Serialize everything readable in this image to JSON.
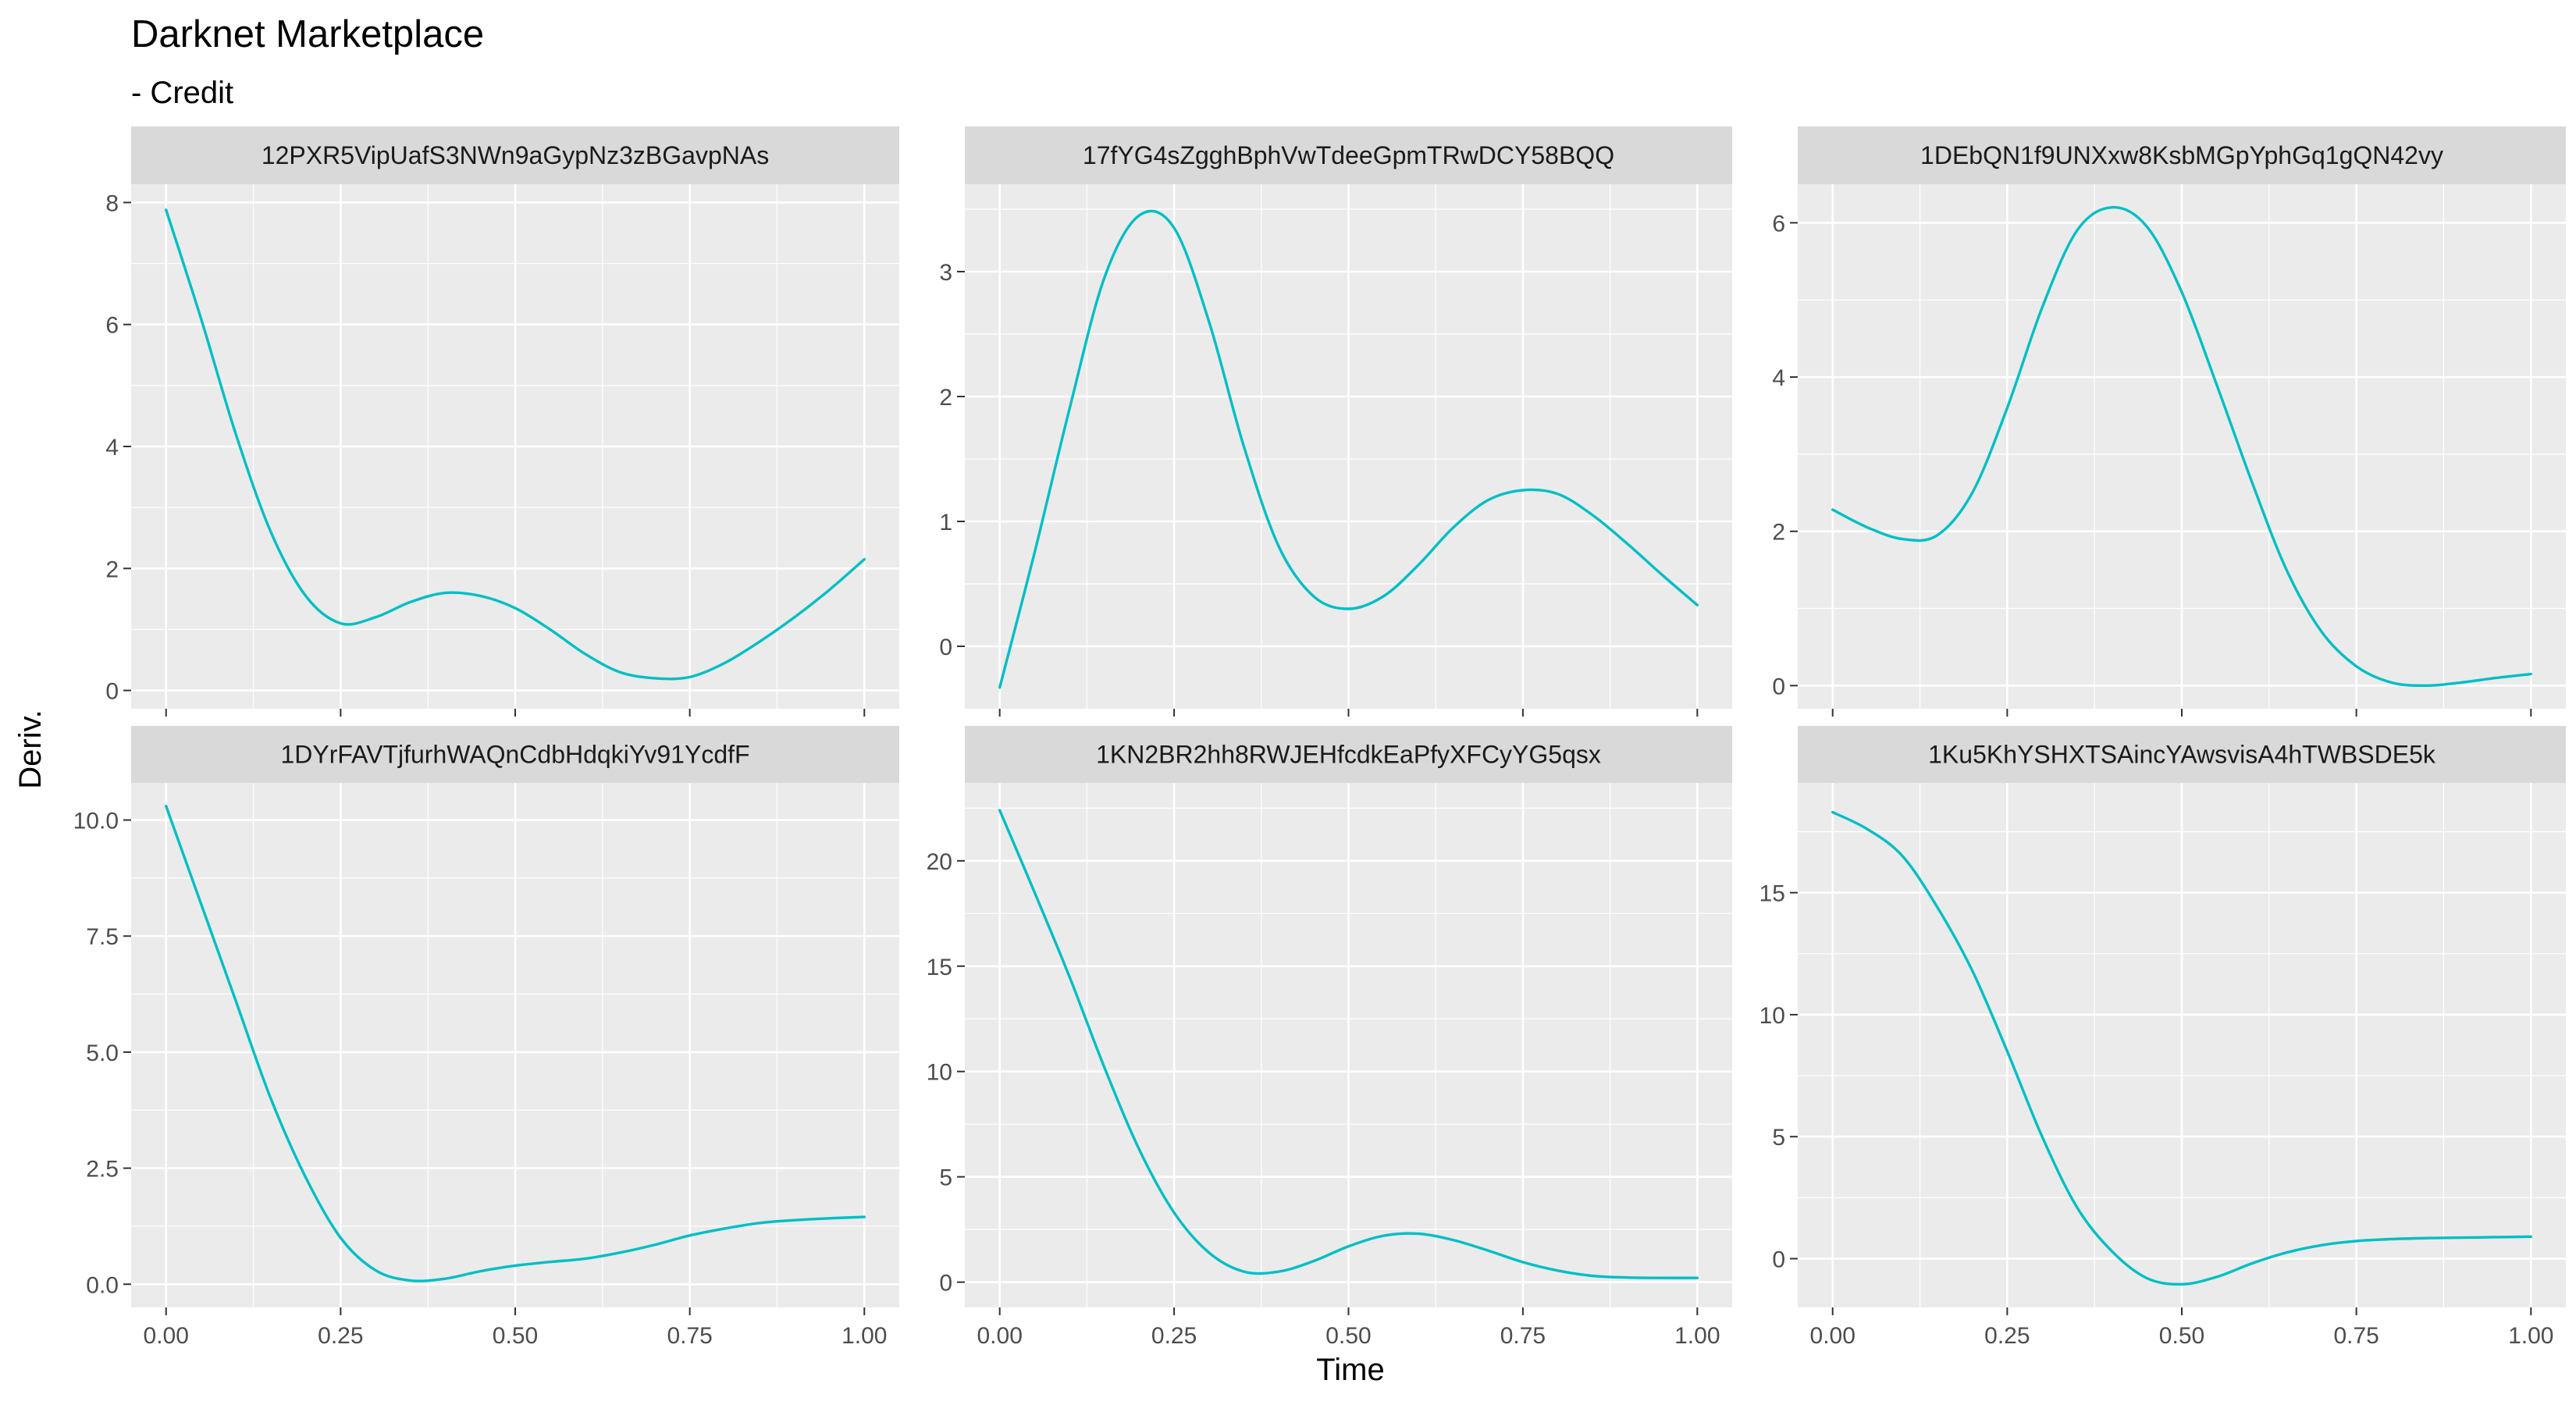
{
  "chart_data": {
    "type": "line",
    "title": "Darknet Marketplace",
    "subtitle": "- Credit",
    "xlabel": "Time",
    "ylabel": "Deriv.",
    "line_color": "#00BFC4",
    "panel_background": "#EBEBEB",
    "strip_background": "#D9D9D9",
    "grid": true,
    "x_ticks": [
      0.0,
      0.25,
      0.5,
      0.75,
      1.0
    ],
    "x_tick_labels": [
      "0.00",
      "0.25",
      "0.50",
      "0.75",
      "1.00"
    ],
    "xlim": [
      -0.05,
      1.05
    ],
    "facets": [
      {
        "label": "12PXR5VipUafS3NWn9aGypNz3zBGavpNAs",
        "ylim": [
          -0.3,
          8.3
        ],
        "y_ticks": [
          0,
          2,
          4,
          6,
          8
        ],
        "y_tick_labels": [
          "0",
          "2",
          "4",
          "6",
          "8"
        ],
        "x": [
          0.0,
          0.05,
          0.1,
          0.15,
          0.2,
          0.25,
          0.3,
          0.35,
          0.4,
          0.45,
          0.5,
          0.55,
          0.6,
          0.65,
          0.7,
          0.75,
          0.8,
          0.85,
          0.9,
          0.95,
          1.0
        ],
        "y": [
          7.88,
          6.1,
          4.2,
          2.6,
          1.55,
          1.1,
          1.2,
          1.45,
          1.6,
          1.55,
          1.35,
          1.0,
          0.6,
          0.3,
          0.2,
          0.22,
          0.45,
          0.8,
          1.2,
          1.65,
          2.15
        ]
      },
      {
        "label": "17fYG4sZgghBphVwTdeeGpmTRwDCY58BQQ",
        "ylim": [
          -0.5,
          3.7
        ],
        "y_ticks": [
          0,
          1,
          2,
          3
        ],
        "y_tick_labels": [
          "0",
          "1",
          "2",
          "3"
        ],
        "x": [
          0.0,
          0.05,
          0.1,
          0.15,
          0.2,
          0.25,
          0.3,
          0.35,
          0.4,
          0.45,
          0.5,
          0.55,
          0.6,
          0.65,
          0.7,
          0.75,
          0.8,
          0.85,
          0.9,
          0.95,
          1.0
        ],
        "y": [
          -0.33,
          0.75,
          1.9,
          2.95,
          3.45,
          3.35,
          2.6,
          1.6,
          0.8,
          0.4,
          0.3,
          0.4,
          0.65,
          0.95,
          1.17,
          1.25,
          1.22,
          1.05,
          0.82,
          0.57,
          0.33
        ]
      },
      {
        "label": "1DEbQN1f9UNXxw8KsbMGpYphGq1gQN42vy",
        "ylim": [
          -0.3,
          6.5
        ],
        "y_ticks": [
          0,
          2,
          4,
          6
        ],
        "y_tick_labels": [
          "0",
          "2",
          "4",
          "6"
        ],
        "x": [
          0.0,
          0.05,
          0.1,
          0.15,
          0.2,
          0.25,
          0.3,
          0.35,
          0.4,
          0.45,
          0.5,
          0.55,
          0.6,
          0.65,
          0.7,
          0.75,
          0.8,
          0.85,
          0.9,
          0.95,
          1.0
        ],
        "y": [
          2.28,
          2.05,
          1.9,
          1.95,
          2.5,
          3.6,
          4.9,
          5.9,
          6.2,
          5.95,
          5.1,
          3.9,
          2.65,
          1.5,
          0.7,
          0.25,
          0.04,
          0.0,
          0.04,
          0.1,
          0.15
        ]
      },
      {
        "label": "1DYrFAVTjfurhWAQnCdbHdqkiYv91YcdfF",
        "ylim": [
          -0.5,
          10.8
        ],
        "y_ticks": [
          0,
          2.5,
          5,
          7.5,
          10
        ],
        "y_tick_labels": [
          "0.0",
          "2.5",
          "5.0",
          "7.5",
          "10.0"
        ],
        "x": [
          0.0,
          0.05,
          0.1,
          0.15,
          0.2,
          0.25,
          0.3,
          0.35,
          0.4,
          0.45,
          0.5,
          0.55,
          0.6,
          0.65,
          0.7,
          0.75,
          0.8,
          0.85,
          0.9,
          0.95,
          1.0
        ],
        "y": [
          10.3,
          8.2,
          6.1,
          4.0,
          2.3,
          1.0,
          0.3,
          0.08,
          0.12,
          0.28,
          0.4,
          0.48,
          0.55,
          0.68,
          0.85,
          1.05,
          1.2,
          1.32,
          1.38,
          1.42,
          1.45
        ]
      },
      {
        "label": "1KN2BR2hh8RWJEHfcdkEaPfyXFCyYG5qsx",
        "ylim": [
          -1.2,
          23.7
        ],
        "y_ticks": [
          0,
          5,
          10,
          15,
          20
        ],
        "y_tick_labels": [
          "0",
          "5",
          "10",
          "15",
          "20"
        ],
        "x": [
          0.0,
          0.05,
          0.1,
          0.15,
          0.2,
          0.25,
          0.3,
          0.35,
          0.4,
          0.45,
          0.5,
          0.55,
          0.6,
          0.65,
          0.7,
          0.75,
          0.8,
          0.85,
          0.9,
          0.95,
          1.0
        ],
        "y": [
          22.4,
          18.5,
          14.5,
          10.2,
          6.3,
          3.3,
          1.4,
          0.5,
          0.5,
          1.0,
          1.7,
          2.2,
          2.3,
          2.0,
          1.5,
          0.95,
          0.55,
          0.3,
          0.22,
          0.2,
          0.2
        ]
      },
      {
        "label": "1Ku5KhYSHXTSAincYAwsvisA4hTWBSDE5k",
        "ylim": [
          -2.0,
          19.5
        ],
        "y_ticks": [
          0,
          5,
          10,
          15
        ],
        "y_tick_labels": [
          "0",
          "5",
          "10",
          "15"
        ],
        "x": [
          0.0,
          0.05,
          0.1,
          0.15,
          0.2,
          0.25,
          0.3,
          0.35,
          0.4,
          0.45,
          0.5,
          0.55,
          0.6,
          0.65,
          0.7,
          0.75,
          0.8,
          0.85,
          0.9,
          0.95,
          1.0
        ],
        "y": [
          18.3,
          17.6,
          16.5,
          14.4,
          11.8,
          8.5,
          5.0,
          2.1,
          0.3,
          -0.8,
          -1.05,
          -0.75,
          -0.2,
          0.25,
          0.55,
          0.72,
          0.8,
          0.84,
          0.86,
          0.88,
          0.9
        ]
      }
    ]
  }
}
